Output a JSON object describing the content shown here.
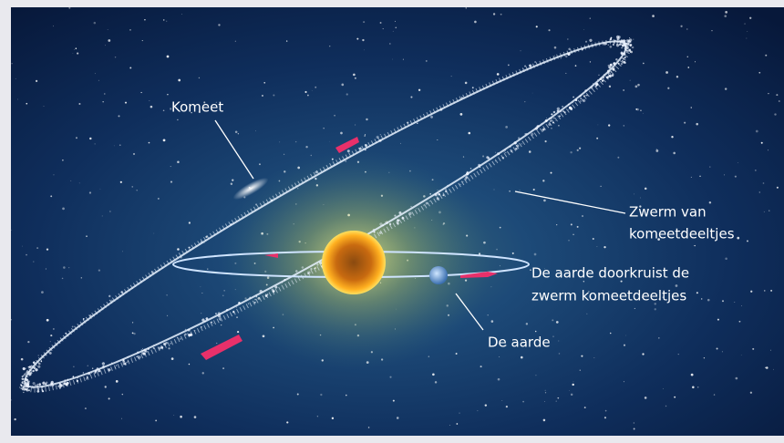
{
  "labels": {
    "comet": "Komeet",
    "swarm": [
      "Zwerm van",
      "komeetdeeltjes"
    ],
    "crossing": [
      "De aarde doorkruist de",
      "zwerm komeetdeeltjes"
    ],
    "earth": "De aarde"
  }
}
